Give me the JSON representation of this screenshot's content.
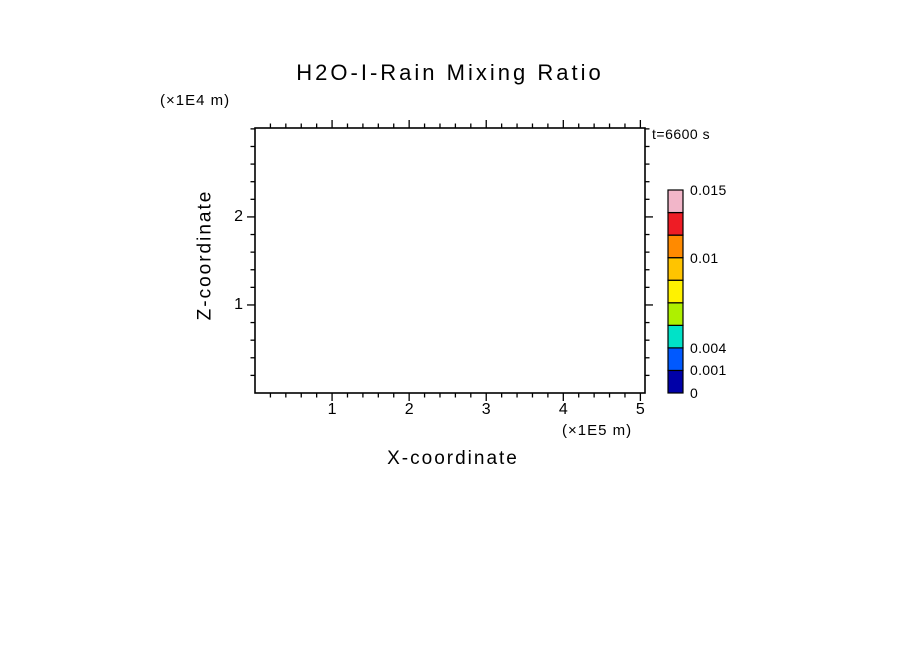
{
  "page": {
    "background": "#ffffff"
  },
  "chart_data": {
    "type": "heatmap",
    "title": "H2O-I-Rain Mixing Ratio",
    "annotation": "t=6600 s",
    "xlabel": "X-coordinate",
    "x_unit_label": "(×1E5 m)",
    "ylabel": "Z-coordinate",
    "y_unit_label": "(×1E4 m)",
    "x_axis": {
      "range": [
        0,
        5.06
      ],
      "major_ticks": [
        1,
        2,
        3,
        4,
        5
      ],
      "minor_step": 0.2
    },
    "y_axis": {
      "range": [
        0,
        3.01
      ],
      "major_ticks": [
        1,
        2
      ],
      "minor_step": 0.2
    },
    "field": {
      "visible_filled_contours": []
    },
    "colorbar": {
      "segment_colors_bottom_to_top": [
        "#0000a8",
        "#0059ff",
        "#00e2c8",
        "#aef000",
        "#fff200",
        "#ffc400",
        "#ff8a00",
        "#ee1c25",
        "#f2b6c9"
      ],
      "labels": [
        {
          "text": "0",
          "frac_from_bottom": 0
        },
        {
          "text": "0.001",
          "frac_from_bottom": 0.111
        },
        {
          "text": "0.004",
          "frac_from_bottom": 0.222
        },
        {
          "text": "0.01",
          "frac_from_bottom": 0.667
        },
        {
          "text": "0.015",
          "frac_from_bottom": 1.0
        }
      ],
      "outline_color": "#000000"
    },
    "frame_color": "#000000",
    "text_color": "#000000"
  }
}
